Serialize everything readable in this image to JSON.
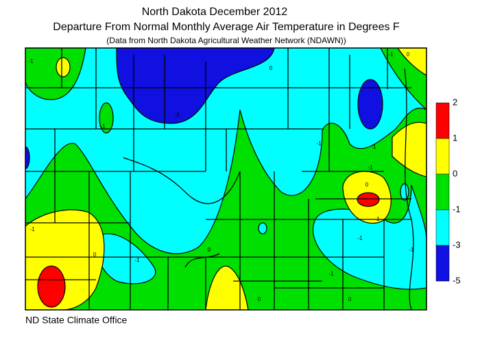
{
  "header": {
    "title": "North Dakota December 2012",
    "subtitle": "Departure From Normal Monthly Average Air Temperature in Degrees F",
    "source": "(Data from North Dakota Agricultural Weather Network (NDAWN))"
  },
  "legend": {
    "levels": [
      2,
      1,
      0,
      -1,
      -3,
      -5
    ],
    "colors": [
      "#ff0000",
      "#ffff00",
      "#00e000",
      "#00ffff",
      "#1010e0"
    ]
  },
  "contour_labels": [
    -1,
    0,
    -1,
    -3,
    -1,
    -1,
    -1,
    -1,
    0,
    -1,
    -1,
    -1,
    0,
    -1,
    0,
    -1,
    0,
    0,
    -1,
    0
  ],
  "footer": "ND State Climate Office"
}
